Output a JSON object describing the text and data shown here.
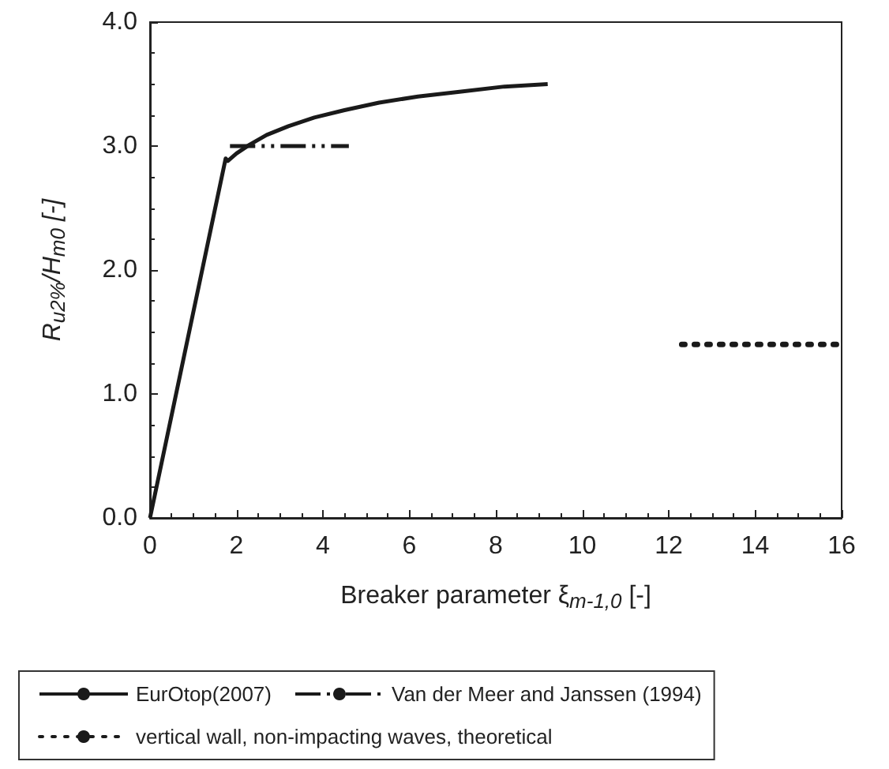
{
  "chart_data": {
    "type": "line",
    "xlabel": "Breaker parameter ξ$_{m-1,0}$ [-]",
    "ylabel": "R$_{u2%}$/H$_{m0}$ [-]",
    "xlim": [
      0,
      16
    ],
    "xticks": [
      0,
      2,
      4,
      6,
      8,
      10,
      12,
      14,
      16
    ],
    "ylim": [
      0,
      4
    ],
    "yticks": [
      {
        "value": 0,
        "label": "0.0"
      },
      {
        "value": 1,
        "label": "1.0"
      },
      {
        "value": 2,
        "label": "2.0"
      },
      {
        "value": 3,
        "label": "3.0"
      },
      {
        "value": 4,
        "label": "4.0"
      }
    ],
    "grid": false,
    "legend": "bottom",
    "marker": "none",
    "series": [
      {
        "name": "EurOtop(2007)",
        "color": "#1a1a1a",
        "line_style": "solid",
        "x": [
          0,
          1.75,
          1.8,
          2.0,
          2.3,
          2.7,
          3.2,
          3.8,
          4.5,
          5.3,
          6.2,
          7.2,
          8.2,
          9.2
        ],
        "values": [
          0,
          2.9,
          2.88,
          2.94,
          3.01,
          3.09,
          3.16,
          3.23,
          3.29,
          3.35,
          3.4,
          3.44,
          3.48,
          3.5
        ]
      },
      {
        "name": "Van der Meer and Janssen (1994)",
        "color": "#1a1a1a",
        "line_style": "dashed",
        "x": [
          1.85,
          4.6
        ],
        "values": [
          3.0,
          3.0
        ]
      },
      {
        "name": "vertical wall, non-impacting waves, theoretical",
        "color": "#1a1a1a",
        "line_style": "dotted",
        "x": [
          12.3,
          16
        ],
        "values": [
          1.4,
          1.4
        ]
      }
    ]
  }
}
